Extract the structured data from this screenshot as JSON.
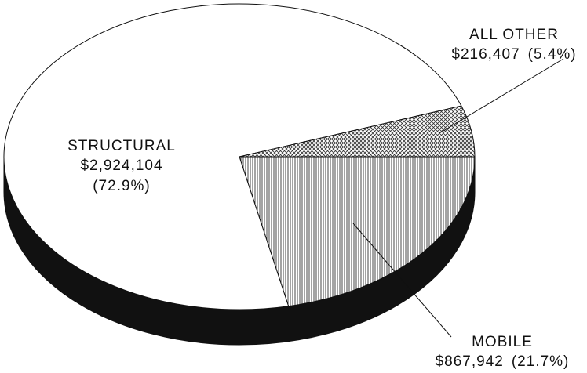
{
  "chart_data": {
    "type": "pie3d",
    "categories": [
      "MOBILE",
      "STRUCTURAL",
      "ALL OTHER"
    ],
    "values": [
      867942,
      2924104,
      216407
    ],
    "value_labels": [
      "$867,942",
      "$2,924,104",
      "$216,407"
    ],
    "percents": [
      21.7,
      72.9,
      5.4
    ],
    "percent_labels": [
      "(21.7%)",
      "(72.9%)",
      "(5.4%)"
    ]
  }
}
